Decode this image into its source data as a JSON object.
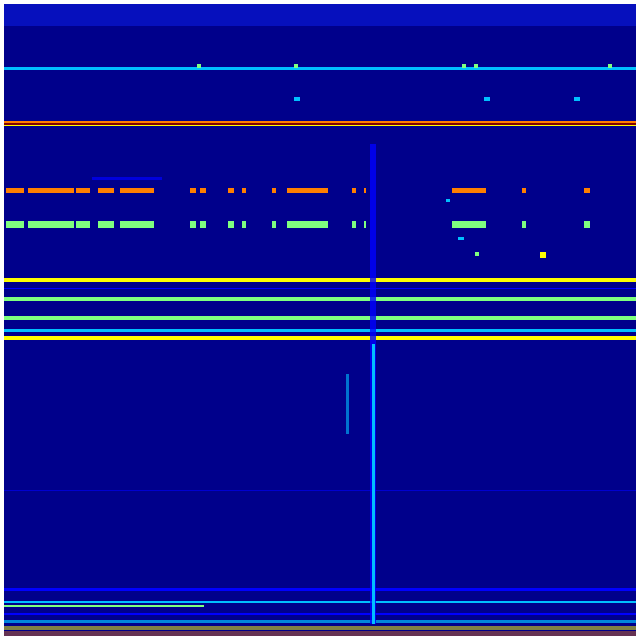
{
  "chart_data": {
    "type": "heatmap",
    "title": "",
    "xlabel": "",
    "ylabel": "",
    "colormap": [
      "#00007f",
      "#0000ff",
      "#00bfff",
      "#7fff7f",
      "#ffff00",
      "#ff7f00",
      "#7f0000"
    ],
    "background_color": "#00008b",
    "grid": false,
    "legend": "none"
  }
}
